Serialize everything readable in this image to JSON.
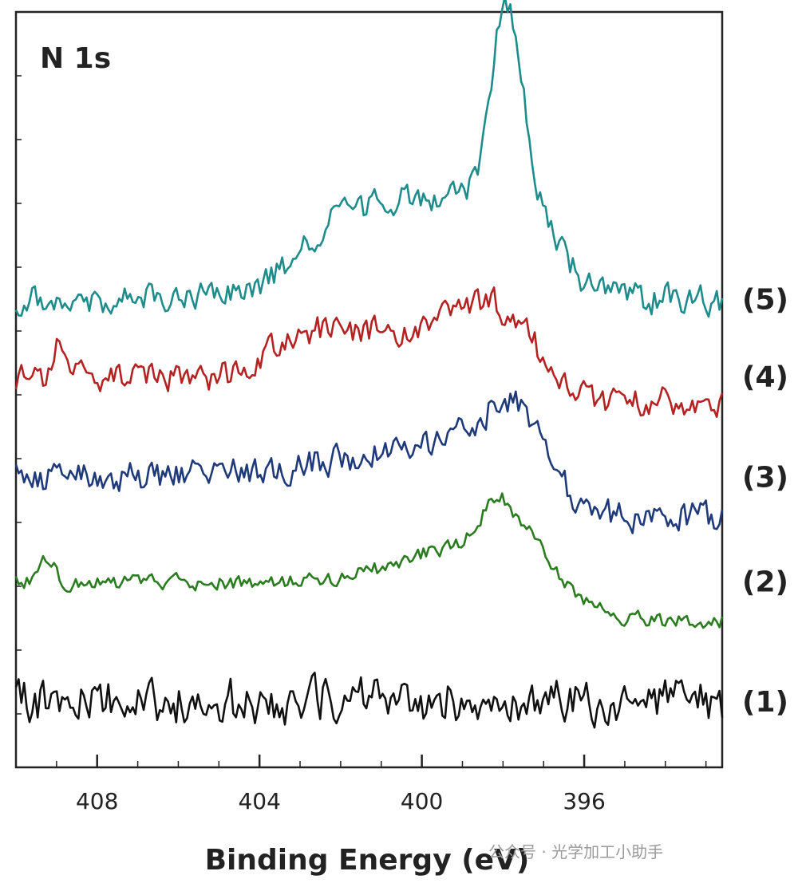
{
  "watermark": "公众号 · 光学加工小助手",
  "chart_data": {
    "type": "line",
    "title": "N 1s",
    "xlabel": "Binding Energy (eV)",
    "ylabel": "",
    "x_reversed": true,
    "xlim": [
      410,
      392.6
    ],
    "xticks": [
      408,
      404,
      400,
      396
    ],
    "xtick_labels": [
      "408",
      "404",
      "400",
      "396"
    ],
    "y_unit": "arbitrary (stacked, offset)",
    "series": [
      {
        "name": "(1)",
        "color": "#111111",
        "baseline": 0.0,
        "noise": 0.55,
        "features": []
      },
      {
        "name": "(2)",
        "color": "#2a7d1e",
        "baseline": 1.55,
        "noise": 0.18,
        "features": [
          {
            "type": "step",
            "edge": 400.5,
            "height": 0.55,
            "width": 0.8
          },
          {
            "type": "peak",
            "center": 398.2,
            "height": 0.55,
            "width": 0.5
          },
          {
            "type": "peak",
            "center": 397.5,
            "height": 0.25,
            "width": 0.6
          },
          {
            "type": "drop",
            "edge": 396.5,
            "height": 1.05,
            "width": 0.5
          },
          {
            "type": "peak",
            "center": 409.2,
            "height": 0.3,
            "width": 0.25
          }
        ]
      },
      {
        "name": "(3)",
        "color": "#1f3a7a",
        "baseline": 2.9,
        "noise": 0.35,
        "features": [
          {
            "type": "step",
            "edge": 401.5,
            "height": 0.55,
            "width": 1.6
          },
          {
            "type": "peak",
            "center": 397.8,
            "height": 0.55,
            "width": 1.0
          },
          {
            "type": "drop",
            "edge": 396.8,
            "height": 1.05,
            "width": 0.4
          }
        ]
      },
      {
        "name": "(4)",
        "color": "#b52222",
        "baseline": 4.2,
        "noise": 0.35,
        "features": [
          {
            "type": "step",
            "edge": 403.8,
            "height": 0.6,
            "width": 0.2
          },
          {
            "type": "peak",
            "center": 398.5,
            "height": 0.4,
            "width": 0.9
          },
          {
            "type": "drop",
            "edge": 396.9,
            "height": 0.9,
            "width": 0.3
          },
          {
            "type": "peak",
            "center": 409.0,
            "height": 0.5,
            "width": 0.15
          }
        ]
      },
      {
        "name": "(5)",
        "color": "#1f8c8c",
        "baseline": 5.2,
        "noise": 0.35,
        "features": [
          {
            "type": "step",
            "edge": 403.0,
            "height": 1.3,
            "width": 0.6
          },
          {
            "type": "peak",
            "center": 397.9,
            "height": 2.6,
            "width": 0.55
          },
          {
            "type": "drop",
            "edge": 396.6,
            "height": 1.3,
            "width": 0.4
          }
        ]
      }
    ]
  }
}
